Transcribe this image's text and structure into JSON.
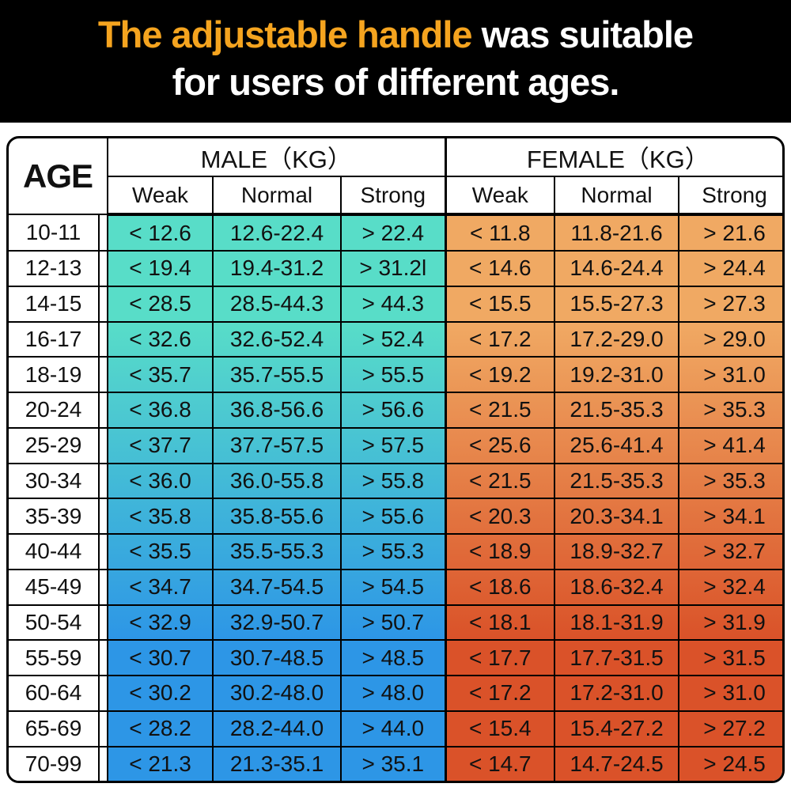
{
  "banner": {
    "title_highlight": "The adjustable handle",
    "title_rest": " was suitable",
    "title_line2": "for users of different ages.",
    "highlight_color": "#F5A41F",
    "background_color": "#000000"
  },
  "table": {
    "age_header": "AGE",
    "male_header": "MALE（KG）",
    "female_header": "FEMALE（KG）",
    "sub_headers": [
      "Weak",
      "Normal",
      "Strong"
    ],
    "colors": {
      "male_top": "#58DDC8",
      "male_bottom": "#2D96E6",
      "female_top": "#F0A963",
      "female_bottom": "#DA5229"
    }
  },
  "chart_data": {
    "type": "table",
    "title": "The adjustable handle was suitable for users of different ages.",
    "columns": [
      "AGE",
      "MALE Weak (KG)",
      "MALE Normal (KG)",
      "MALE Strong (KG)",
      "FEMALE Weak (KG)",
      "FEMALE Normal (KG)",
      "FEMALE Strong (KG)"
    ],
    "rows": [
      [
        "10-11",
        "< 12.6",
        "12.6-22.4",
        "> 22.4",
        "< 11.8",
        "11.8-21.6",
        "> 21.6"
      ],
      [
        "12-13",
        "< 19.4",
        "19.4-31.2",
        "> 31.2l",
        "< 14.6",
        "14.6-24.4",
        "> 24.4"
      ],
      [
        "14-15",
        "< 28.5",
        "28.5-44.3",
        "> 44.3",
        "< 15.5",
        "15.5-27.3",
        "> 27.3"
      ],
      [
        "16-17",
        "< 32.6",
        "32.6-52.4",
        "> 52.4",
        "< 17.2",
        "17.2-29.0",
        "> 29.0"
      ],
      [
        "18-19",
        "< 35.7",
        "35.7-55.5",
        "> 55.5",
        "< 19.2",
        "19.2-31.0",
        "> 31.0"
      ],
      [
        "20-24",
        "< 36.8",
        "36.8-56.6",
        "> 56.6",
        "< 21.5",
        "21.5-35.3",
        "> 35.3"
      ],
      [
        "25-29",
        "< 37.7",
        "37.7-57.5",
        "> 57.5",
        "< 25.6",
        "25.6-41.4",
        "> 41.4"
      ],
      [
        "30-34",
        "< 36.0",
        "36.0-55.8",
        "> 55.8",
        "< 21.5",
        "21.5-35.3",
        "> 35.3"
      ],
      [
        "35-39",
        "< 35.8",
        "35.8-55.6",
        "> 55.6",
        "< 20.3",
        "20.3-34.1",
        "> 34.1"
      ],
      [
        "40-44",
        "< 35.5",
        "35.5-55.3",
        "> 55.3",
        "< 18.9",
        "18.9-32.7",
        "> 32.7"
      ],
      [
        "45-49",
        "< 34.7",
        "34.7-54.5",
        "> 54.5",
        "< 18.6",
        "18.6-32.4",
        "> 32.4"
      ],
      [
        "50-54",
        "< 32.9",
        "32.9-50.7",
        "> 50.7",
        "< 18.1",
        "18.1-31.9",
        "> 31.9"
      ],
      [
        "55-59",
        "< 30.7",
        "30.7-48.5",
        "> 48.5",
        "< 17.7",
        "17.7-31.5",
        "> 31.5"
      ],
      [
        "60-64",
        "< 30.2",
        "30.2-48.0",
        "> 48.0",
        "< 17.2",
        "17.2-31.0",
        "> 31.0"
      ],
      [
        "65-69",
        "< 28.2",
        "28.2-44.0",
        "> 44.0",
        "< 15.4",
        "15.4-27.2",
        "> 27.2"
      ],
      [
        "70-99",
        "< 21.3",
        "21.3-35.1",
        "> 35.1",
        "< 14.7",
        "14.7-24.5",
        "> 24.5"
      ]
    ]
  }
}
